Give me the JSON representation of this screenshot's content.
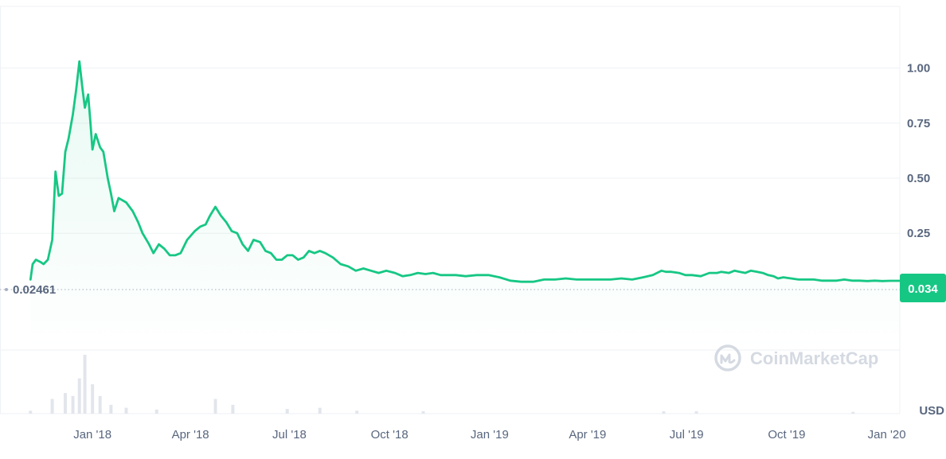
{
  "chart_data": {
    "type": "line",
    "unit": "USD",
    "y_ticks": [
      "1.00",
      "0.75",
      "0.50",
      "0.25"
    ],
    "y_tick_values": [
      1.0,
      0.75,
      0.5,
      0.25
    ],
    "x_ticks": [
      "Jan '18",
      "Apr '18",
      "Jul '18",
      "Oct '18",
      "Jan '19",
      "Apr '19",
      "Jul '19",
      "Oct '19",
      "Jan '20"
    ],
    "x_tick_dates": [
      "2018-01-01",
      "2018-04-01",
      "2018-07-01",
      "2018-10-01",
      "2019-01-01",
      "2019-04-01",
      "2019-07-01",
      "2019-10-01",
      "2020-01-01"
    ],
    "start_price_label": "0.02461",
    "start_price": 0.02461,
    "current_price_label": "0.034",
    "current_price": 0.034,
    "ylim": [
      -0.28,
      1.28
    ],
    "xlim": [
      "2017-10-08",
      "2020-01-13"
    ],
    "grid": true,
    "series": [
      {
        "color": "#16c784",
        "points": [
          [
            "2017-11-05",
            0.04
          ],
          [
            "2017-11-07",
            0.11
          ],
          [
            "2017-11-10",
            0.13
          ],
          [
            "2017-11-14",
            0.12
          ],
          [
            "2017-11-17",
            0.11
          ],
          [
            "2017-11-21",
            0.13
          ],
          [
            "2017-11-25",
            0.22
          ],
          [
            "2017-11-28",
            0.53
          ],
          [
            "2017-12-01",
            0.42
          ],
          [
            "2017-12-04",
            0.43
          ],
          [
            "2017-12-07",
            0.62
          ],
          [
            "2017-12-10",
            0.68
          ],
          [
            "2017-12-14",
            0.79
          ],
          [
            "2017-12-17",
            0.9
          ],
          [
            "2017-12-20",
            1.03
          ],
          [
            "2017-12-23",
            0.9
          ],
          [
            "2017-12-25",
            0.82
          ],
          [
            "2017-12-28",
            0.88
          ],
          [
            "2017-12-30",
            0.76
          ],
          [
            "2018-01-01",
            0.63
          ],
          [
            "2018-01-04",
            0.7
          ],
          [
            "2018-01-08",
            0.64
          ],
          [
            "2018-01-11",
            0.62
          ],
          [
            "2018-01-15",
            0.5
          ],
          [
            "2018-01-18",
            0.43
          ],
          [
            "2018-01-21",
            0.35
          ],
          [
            "2018-01-25",
            0.41
          ],
          [
            "2018-02-01",
            0.39
          ],
          [
            "2018-02-07",
            0.35
          ],
          [
            "2018-02-12",
            0.3
          ],
          [
            "2018-02-16",
            0.25
          ],
          [
            "2018-02-22",
            0.2
          ],
          [
            "2018-02-26",
            0.16
          ],
          [
            "2018-03-03",
            0.2
          ],
          [
            "2018-03-08",
            0.18
          ],
          [
            "2018-03-13",
            0.15
          ],
          [
            "2018-03-18",
            0.15
          ],
          [
            "2018-03-23",
            0.16
          ],
          [
            "2018-03-29",
            0.22
          ],
          [
            "2018-04-05",
            0.26
          ],
          [
            "2018-04-10",
            0.28
          ],
          [
            "2018-04-15",
            0.29
          ],
          [
            "2018-04-19",
            0.33
          ],
          [
            "2018-04-24",
            0.37
          ],
          [
            "2018-04-29",
            0.33
          ],
          [
            "2018-05-04",
            0.3
          ],
          [
            "2018-05-09",
            0.26
          ],
          [
            "2018-05-14",
            0.25
          ],
          [
            "2018-05-19",
            0.2
          ],
          [
            "2018-05-24",
            0.17
          ],
          [
            "2018-05-29",
            0.22
          ],
          [
            "2018-06-04",
            0.21
          ],
          [
            "2018-06-09",
            0.17
          ],
          [
            "2018-06-14",
            0.16
          ],
          [
            "2018-06-19",
            0.13
          ],
          [
            "2018-06-24",
            0.13
          ],
          [
            "2018-06-29",
            0.15
          ],
          [
            "2018-07-04",
            0.15
          ],
          [
            "2018-07-09",
            0.13
          ],
          [
            "2018-07-14",
            0.14
          ],
          [
            "2018-07-19",
            0.17
          ],
          [
            "2018-07-24",
            0.16
          ],
          [
            "2018-07-29",
            0.17
          ],
          [
            "2018-08-03",
            0.16
          ],
          [
            "2018-08-10",
            0.14
          ],
          [
            "2018-08-17",
            0.11
          ],
          [
            "2018-08-24",
            0.1
          ],
          [
            "2018-08-31",
            0.08
          ],
          [
            "2018-09-07",
            0.09
          ],
          [
            "2018-09-14",
            0.08
          ],
          [
            "2018-09-21",
            0.07
          ],
          [
            "2018-09-28",
            0.08
          ],
          [
            "2018-10-06",
            0.07
          ],
          [
            "2018-10-13",
            0.055
          ],
          [
            "2018-10-20",
            0.06
          ],
          [
            "2018-10-27",
            0.07
          ],
          [
            "2018-11-03",
            0.065
          ],
          [
            "2018-11-10",
            0.07
          ],
          [
            "2018-11-17",
            0.06
          ],
          [
            "2018-11-24",
            0.06
          ],
          [
            "2018-12-01",
            0.06
          ],
          [
            "2018-12-10",
            0.055
          ],
          [
            "2018-12-20",
            0.06
          ],
          [
            "2018-12-31",
            0.06
          ],
          [
            "2019-01-10",
            0.05
          ],
          [
            "2019-01-20",
            0.035
          ],
          [
            "2019-01-30",
            0.03
          ],
          [
            "2019-02-10",
            0.03
          ],
          [
            "2019-02-20",
            0.04
          ],
          [
            "2019-03-02",
            0.04
          ],
          [
            "2019-03-12",
            0.045
          ],
          [
            "2019-03-22",
            0.04
          ],
          [
            "2019-04-02",
            0.04
          ],
          [
            "2019-04-12",
            0.04
          ],
          [
            "2019-04-22",
            0.04
          ],
          [
            "2019-05-02",
            0.045
          ],
          [
            "2019-05-12",
            0.04
          ],
          [
            "2019-05-22",
            0.05
          ],
          [
            "2019-05-31",
            0.06
          ],
          [
            "2019-06-08",
            0.08
          ],
          [
            "2019-06-12",
            0.075
          ],
          [
            "2019-06-17",
            0.075
          ],
          [
            "2019-06-24",
            0.07
          ],
          [
            "2019-06-30",
            0.06
          ],
          [
            "2019-07-06",
            0.06
          ],
          [
            "2019-07-14",
            0.055
          ],
          [
            "2019-07-22",
            0.07
          ],
          [
            "2019-07-29",
            0.07
          ],
          [
            "2019-08-02",
            0.075
          ],
          [
            "2019-08-09",
            0.07
          ],
          [
            "2019-08-14",
            0.08
          ],
          [
            "2019-08-19",
            0.075
          ],
          [
            "2019-08-24",
            0.07
          ],
          [
            "2019-08-29",
            0.08
          ],
          [
            "2019-09-04",
            0.075
          ],
          [
            "2019-09-09",
            0.07
          ],
          [
            "2019-09-14",
            0.06
          ],
          [
            "2019-09-19",
            0.055
          ],
          [
            "2019-09-23",
            0.045
          ],
          [
            "2019-09-28",
            0.05
          ],
          [
            "2019-10-05",
            0.045
          ],
          [
            "2019-10-12",
            0.04
          ],
          [
            "2019-10-19",
            0.04
          ],
          [
            "2019-10-26",
            0.04
          ],
          [
            "2019-11-02",
            0.035
          ],
          [
            "2019-11-09",
            0.035
          ],
          [
            "2019-11-16",
            0.035
          ],
          [
            "2019-11-23",
            0.04
          ],
          [
            "2019-11-30",
            0.035
          ],
          [
            "2019-12-07",
            0.035
          ],
          [
            "2019-12-14",
            0.033
          ],
          [
            "2019-12-21",
            0.035
          ],
          [
            "2019-12-28",
            0.033
          ],
          [
            "2020-01-04",
            0.034
          ],
          [
            "2020-01-13",
            0.034
          ]
        ]
      }
    ],
    "volume": {
      "color": "#e2e6ec",
      "bars": [
        [
          "2017-11-05",
          0.05
        ],
        [
          "2017-11-25",
          0.25
        ],
        [
          "2017-12-07",
          0.35
        ],
        [
          "2017-12-14",
          0.3
        ],
        [
          "2017-12-20",
          0.6
        ],
        [
          "2017-12-25",
          1.0
        ],
        [
          "2018-01-01",
          0.5
        ],
        [
          "2018-01-08",
          0.3
        ],
        [
          "2018-01-18",
          0.15
        ],
        [
          "2018-02-01",
          0.1
        ],
        [
          "2018-03-01",
          0.07
        ],
        [
          "2018-04-24",
          0.25
        ],
        [
          "2018-05-10",
          0.15
        ],
        [
          "2018-06-29",
          0.08
        ],
        [
          "2018-07-29",
          0.1
        ],
        [
          "2018-09-01",
          0.05
        ],
        [
          "2018-11-01",
          0.04
        ],
        [
          "2019-06-10",
          0.04
        ],
        [
          "2019-07-10",
          0.04
        ],
        [
          "2019-12-01",
          0.03
        ]
      ]
    }
  },
  "brand": {
    "name": "CoinMarketCap",
    "color": "#d5dae2"
  }
}
